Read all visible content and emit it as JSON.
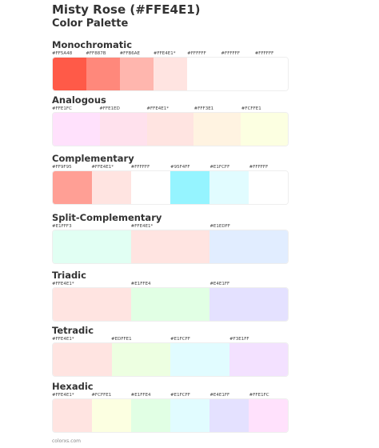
{
  "header": {
    "title": "Misty Rose (#FFE4E1)",
    "subtitle": "Color Palette"
  },
  "sections": [
    {
      "name": "Monochromatic",
      "swatches": [
        {
          "label": "#FF5A48",
          "color": "#FF5A48"
        },
        {
          "label": "#FF887B",
          "color": "#FF887B"
        },
        {
          "label": "#FFB6AE",
          "color": "#FFB6AE"
        },
        {
          "label": "#FFE4E1*",
          "color": "#FFE4E1"
        },
        {
          "label": "#FFFFFF",
          "color": "#FFFFFF"
        },
        {
          "label": "#FFFFFF",
          "color": "#FFFFFF"
        },
        {
          "label": "#FFFFFF",
          "color": "#FFFFFF"
        }
      ]
    },
    {
      "name": "Analogous",
      "swatches": [
        {
          "label": "#FFE1FC",
          "color": "#FFE1FC"
        },
        {
          "label": "#FFE1ED",
          "color": "#FFE1ED"
        },
        {
          "label": "#FFE4E1*",
          "color": "#FFE4E1"
        },
        {
          "label": "#FFF3E1",
          "color": "#FFF3E1"
        },
        {
          "label": "#FCFFE1",
          "color": "#FCFFE1"
        }
      ]
    },
    {
      "name": "Complementary",
      "swatches": [
        {
          "label": "#FF9F95",
          "color": "#FF9F95"
        },
        {
          "label": "#FFE4E1*",
          "color": "#FFE4E1"
        },
        {
          "label": "#FFFFFF",
          "color": "#FFFFFF"
        },
        {
          "label": "#95F4FF",
          "color": "#95F4FF"
        },
        {
          "label": "#E1FCFF",
          "color": "#E1FCFF"
        },
        {
          "label": "#FFFFFF",
          "color": "#FFFFFF"
        }
      ]
    },
    {
      "name": "Split-Complementary",
      "swatches": [
        {
          "label": "#E1FFF3",
          "color": "#E1FFF3"
        },
        {
          "label": "#FFE4E1*",
          "color": "#FFE4E1"
        },
        {
          "label": "#E1EDFF",
          "color": "#E1EDFF"
        }
      ]
    },
    {
      "name": "Triadic",
      "swatches": [
        {
          "label": "#FFE4E1*",
          "color": "#FFE4E1"
        },
        {
          "label": "#E1FFE4",
          "color": "#E1FFE4"
        },
        {
          "label": "#E4E1FF",
          "color": "#E4E1FF"
        }
      ]
    },
    {
      "name": "Tetradic",
      "swatches": [
        {
          "label": "#FFE4E1*",
          "color": "#FFE4E1"
        },
        {
          "label": "#EDFFE1",
          "color": "#EDFFE1"
        },
        {
          "label": "#E1FCFF",
          "color": "#E1FCFF"
        },
        {
          "label": "#F3E1FF",
          "color": "#F3E1FF"
        }
      ]
    },
    {
      "name": "Hexadic",
      "swatches": [
        {
          "label": "#FFE4E1*",
          "color": "#FFE4E1"
        },
        {
          "label": "#FCFFE1",
          "color": "#FCFFE1"
        },
        {
          "label": "#E1FFE4",
          "color": "#E1FFE4"
        },
        {
          "label": "#E1FCFF",
          "color": "#E1FCFF"
        },
        {
          "label": "#E4E1FF",
          "color": "#E4E1FF"
        },
        {
          "label": "#FFE1FC",
          "color": "#FFE1FC"
        }
      ]
    }
  ],
  "footer": "colorxs.com"
}
